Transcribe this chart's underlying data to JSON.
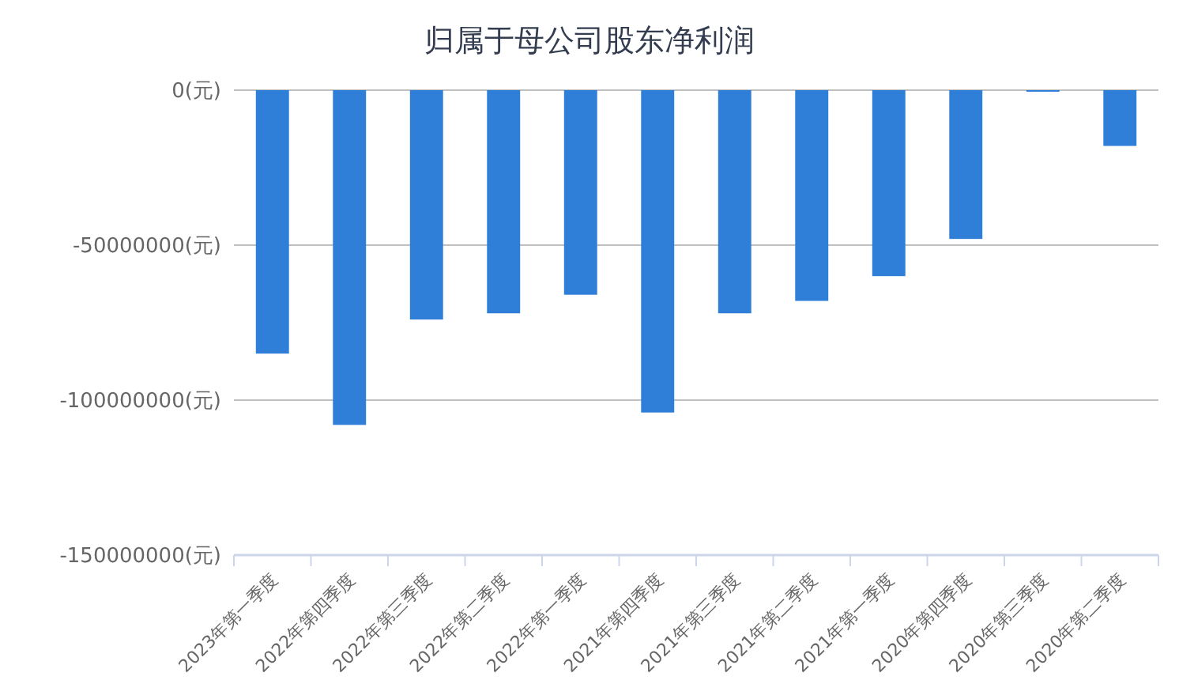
{
  "chart_data": {
    "type": "bar",
    "title": "归属于母公司股东净利润",
    "categories": [
      "2023年第一季度",
      "2022年第四季度",
      "2022年第三季度",
      "2022年第二季度",
      "2022年第一季度",
      "2021年第四季度",
      "2021年第三季度",
      "2021年第二季度",
      "2021年第一季度",
      "2020年第四季度",
      "2020年第三季度",
      "2020年第二季度"
    ],
    "values": [
      -85000000,
      -108000000,
      -74000000,
      -72000000,
      -66000000,
      -104000000,
      -72000000,
      -68000000,
      -60000000,
      -48000000,
      -500000,
      -18000000
    ],
    "color": "#2f7ed8",
    "ylim": [
      -150000000,
      0
    ],
    "yticks": [
      {
        "value": 0,
        "label": "0(元)"
      },
      {
        "value": -50000000,
        "label": "-50000000(元)"
      },
      {
        "value": -100000000,
        "label": "-100000000(元)"
      },
      {
        "value": -150000000,
        "label": "-150000000(元)"
      }
    ],
    "grid": "y"
  }
}
